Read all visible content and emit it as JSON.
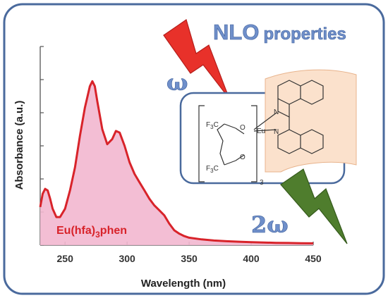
{
  "heading": {
    "text": "NLO",
    "suffix": "properties"
  },
  "omega_in": "ω",
  "omega_out": "2ω",
  "colors": {
    "curve": "#d8232a",
    "fill": "#f2b7cf",
    "frame": "#4a6a9d",
    "bolt_red": "#e8312a",
    "bolt_green": "#4f7d2d"
  },
  "chart_data": {
    "type": "area",
    "x": [
      230,
      232,
      234,
      236,
      238,
      240,
      243,
      246,
      250,
      254,
      258,
      262,
      266,
      270,
      272,
      274,
      276,
      280,
      284,
      288,
      291,
      294,
      298,
      302,
      306,
      310,
      314,
      318,
      322,
      326,
      330,
      334,
      338,
      342,
      346,
      350,
      360,
      370,
      380,
      390,
      400,
      410,
      420,
      430,
      440,
      450
    ],
    "y": [
      0.23,
      0.31,
      0.34,
      0.33,
      0.28,
      0.22,
      0.17,
      0.17,
      0.22,
      0.33,
      0.47,
      0.66,
      0.83,
      0.96,
      0.99,
      0.96,
      0.87,
      0.7,
      0.61,
      0.64,
      0.69,
      0.68,
      0.6,
      0.5,
      0.43,
      0.38,
      0.33,
      0.28,
      0.24,
      0.21,
      0.18,
      0.13,
      0.09,
      0.07,
      0.055,
      0.045,
      0.035,
      0.028,
      0.024,
      0.021,
      0.018,
      0.016,
      0.014,
      0.013,
      0.012,
      0.011
    ],
    "xlim": [
      230,
      450
    ],
    "ylim": [
      0,
      1.2
    ],
    "xticks": [
      250,
      300,
      350,
      400,
      450
    ],
    "yticks_count": 7,
    "xlabel": "Wavelength (nm)",
    "ylabel": "Absorbance (a.u.)",
    "series_label": {
      "base": "Eu(hfa)",
      "sub": "3",
      "tail": "phen"
    },
    "grid": false
  },
  "molecule": {
    "metal": "Eu",
    "cf3": "F",
    "cf3_sub": "3",
    "cf3_tail": "C",
    "oxygen": "O",
    "nitrogen": "N",
    "count": "3"
  }
}
